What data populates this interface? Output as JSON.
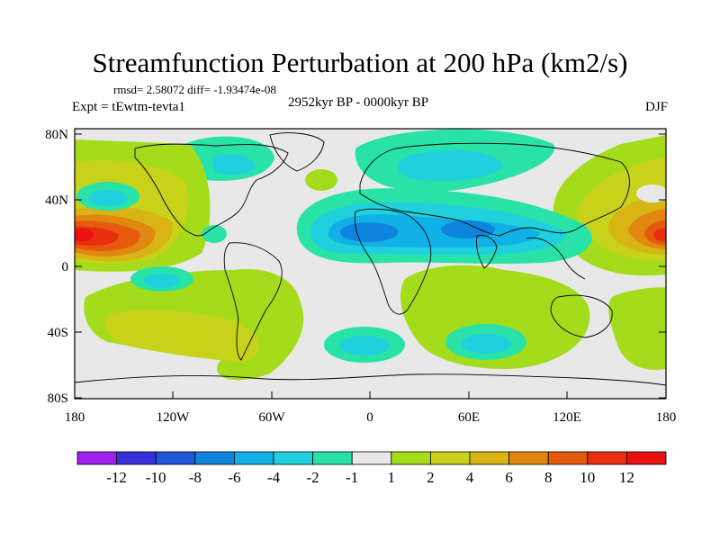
{
  "header": {
    "title": "Streamfunction Perturbation at 200 hPa (km2/s)",
    "stats": "rmsd= 2.58072 diff= -1.93474e-08",
    "experiment": "Expt = tEwtm-tevta1",
    "period": "2952kyr BP - 0000kyr BP",
    "season": "DJF"
  },
  "map": {
    "lat_ticks": [
      "80N",
      "40N",
      "0",
      "40S",
      "80S"
    ],
    "lon_ticks": [
      "180",
      "120W",
      "60W",
      "0",
      "60E",
      "120E",
      "180"
    ]
  },
  "colorbar": {
    "labels": [
      "-12",
      "-10",
      "-8",
      "-6",
      "-4",
      "-2",
      "-1",
      "1",
      "2",
      "4",
      "6",
      "8",
      "10",
      "12"
    ],
    "colors": [
      "#a020f0",
      "#3a2fdc",
      "#1f57d6",
      "#0f84de",
      "#11b0e6",
      "#20d0dc",
      "#29e2a8",
      "#e8e8e8",
      "#a4dc1c",
      "#c8d21a",
      "#d8b415",
      "#e0880f",
      "#e65a0e",
      "#ea2f10",
      "#e81212"
    ]
  }
}
